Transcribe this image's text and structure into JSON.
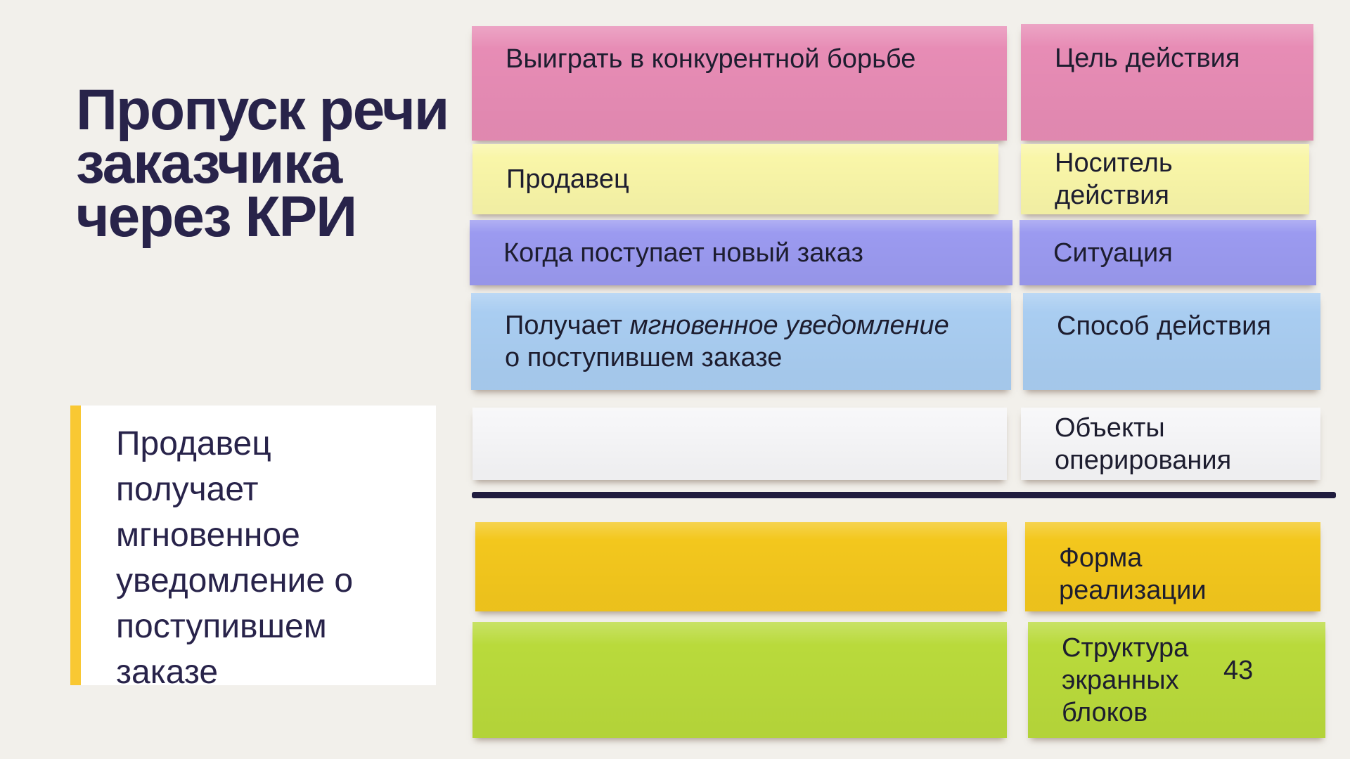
{
  "slide": {
    "title_lines": [
      "Пропуск речи",
      "заказчика",
      "через КРИ"
    ],
    "quote": {
      "text": "Продавец получает мгновенное уведомление о поступившем заказе",
      "accent_color": "#f9c833"
    },
    "board": {
      "values": [
        {
          "key": "goal",
          "text": "Выиграть в конкурентной борьбе",
          "color": "#e78cb5"
        },
        {
          "key": "carrier",
          "text": "Продавец",
          "color": "#f9f6a8"
        },
        {
          "key": "situation",
          "text": "Когда поступает новый заказ",
          "color": "#9b9af0"
        },
        {
          "key": "method",
          "text_prefix": "Получает ",
          "text_italic": "мгновенное уведомление",
          "text_line2": "о поступившем заказе",
          "color": "#a9cdf1"
        },
        {
          "key": "objects",
          "text": "",
          "color": "#f6f6f8"
        },
        {
          "key": "form",
          "text": "",
          "color": "#f3c71d"
        },
        {
          "key": "structure",
          "text": "",
          "color": "#b9da3b"
        }
      ],
      "labels": [
        {
          "text": "Цель действия",
          "color": "#e78cb5"
        },
        {
          "text": "Носитель действия",
          "color": "#f9f6a8"
        },
        {
          "text": "Ситуация",
          "color": "#9b9af0"
        },
        {
          "text": "Способ действия",
          "color": "#a9cdf1"
        },
        {
          "text": "Объекты оперирования",
          "color": "#f6f6f8"
        },
        {
          "text": "Форма реализации",
          "color": "#f3c71d"
        },
        {
          "text": "Структура экранных блоков",
          "color": "#b9da3b",
          "count": "43"
        }
      ]
    },
    "colors": {
      "background": "#f2f0eb",
      "title_text": "#28234a",
      "note_text": "#1d1d2f",
      "divider": "#211d3f"
    }
  }
}
